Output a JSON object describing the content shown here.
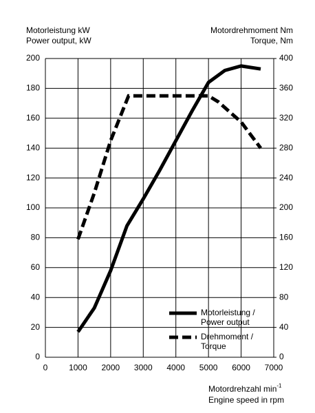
{
  "chart_data": {
    "type": "line",
    "ylabel": [
      "Motorleistung kW",
      "Power output, kW"
    ],
    "y2label": [
      "Motordrehmoment Nm",
      "Torque, Nm"
    ],
    "xlabel": "Motordrehzahl min",
    "xlabel_sup": "-1",
    "xlabel2": "Engine speed in rpm",
    "xlim": [
      0,
      7000
    ],
    "xticks": [
      0,
      1000,
      2000,
      3000,
      4000,
      5000,
      6000,
      7000
    ],
    "ylim": [
      0,
      200
    ],
    "yticks": [
      0,
      20,
      40,
      60,
      80,
      100,
      120,
      140,
      160,
      180,
      200
    ],
    "y2lim": [
      0,
      400
    ],
    "y2ticks": [
      0,
      40,
      80,
      120,
      160,
      200,
      240,
      280,
      320,
      360,
      400
    ],
    "grid": true,
    "series": [
      {
        "name": "Motorleistung / Power output",
        "color": "#000000",
        "style": "solid",
        "x": [
          1000,
          1500,
          2000,
          2500,
          3000,
          3500,
          4000,
          4500,
          5000,
          5500,
          6000,
          6600
        ],
        "values": [
          17,
          33,
          58,
          88,
          106,
          125,
          145,
          165,
          184,
          192,
          195,
          193
        ]
      },
      {
        "name": "Drehmoment / Torque",
        "color": "#000000",
        "style": "dashed",
        "axis": "y2",
        "x": [
          1000,
          1500,
          2000,
          2550,
          3000,
          4000,
          5000,
          5300,
          6000,
          6600
        ],
        "values": [
          158,
          220,
          290,
          350,
          350,
          350,
          350,
          342,
          315,
          280
        ]
      }
    ]
  }
}
